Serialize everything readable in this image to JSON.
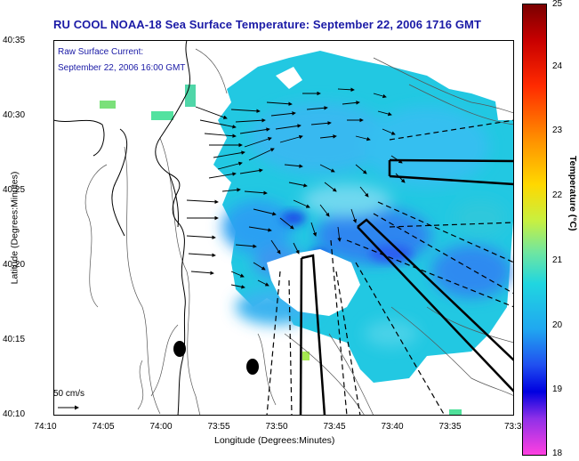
{
  "title": "RU COOL  NOAA-18  Sea Surface Temperature:  September 22, 2006 1716 GMT",
  "annotation": {
    "line1": "Raw Surface Current:",
    "line2": "September 22, 2006 16:00 GMT"
  },
  "scale_label": "50 cm/s",
  "colors": {
    "title": "#1a1aa6",
    "land": "#ffffff",
    "tracks": "#000000"
  },
  "chart_data": {
    "type": "heatmap",
    "title": "RU COOL  NOAA-18  Sea Surface Temperature:  September 22, 2006 1716 GMT",
    "xlabel": "Longitude (Degrees:Minutes)",
    "ylabel": "Latitude (Degrees:Minutes)",
    "x_ticks": [
      "74:10",
      "74:05",
      "74:00",
      "73:55",
      "73:50",
      "73:45",
      "73:40",
      "73:35",
      "73:3"
    ],
    "y_ticks": [
      "40:35",
      "40:30",
      "40:25",
      "40:20",
      "40:15",
      "40:10"
    ],
    "colorbar": {
      "label": "Temperature (°C)",
      "ticks": [
        "25",
        "24",
        "23",
        "22",
        "21",
        "20",
        "19",
        "18"
      ],
      "range": [
        18,
        25
      ]
    },
    "grid": false
  }
}
